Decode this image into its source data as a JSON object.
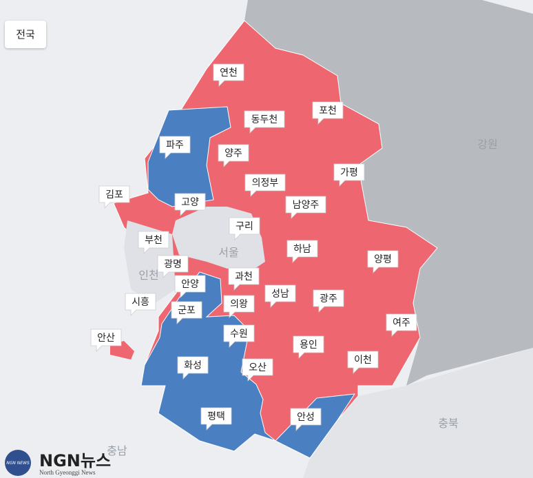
{
  "filter_button": "전국",
  "regions": [
    {
      "name": "연천",
      "color": "#ee6670"
    },
    {
      "name": "동두천",
      "color": "#ee6670"
    },
    {
      "name": "포천",
      "color": "#ee6670"
    },
    {
      "name": "파주",
      "color": "#4a7fc1"
    },
    {
      "name": "양주",
      "color": "#ee6670"
    },
    {
      "name": "가평",
      "color": "#ee6670"
    },
    {
      "name": "의정부",
      "color": "#ee6670"
    },
    {
      "name": "김포",
      "color": "#ee6670"
    },
    {
      "name": "고양",
      "color": "#ee6670"
    },
    {
      "name": "남양주",
      "color": "#ee6670"
    },
    {
      "name": "구리",
      "color": "#ee6670"
    },
    {
      "name": "부천",
      "color": "#ee6670"
    },
    {
      "name": "하남",
      "color": "#ee6670"
    },
    {
      "name": "양평",
      "color": "#ee6670"
    },
    {
      "name": "광명",
      "color": "#4a7fc1"
    },
    {
      "name": "안양",
      "color": "#4a7fc1"
    },
    {
      "name": "과천",
      "color": "#ee6670"
    },
    {
      "name": "성남",
      "color": "#ee6670"
    },
    {
      "name": "시흥",
      "color": "#4a7fc1"
    },
    {
      "name": "광주",
      "color": "#ee6670"
    },
    {
      "name": "의왕",
      "color": "#ee6670"
    },
    {
      "name": "군포",
      "color": "#4a7fc1"
    },
    {
      "name": "여주",
      "color": "#ee6670"
    },
    {
      "name": "수원",
      "color": "#4a7fc1"
    },
    {
      "name": "안산",
      "color": "#ee6670"
    },
    {
      "name": "용인",
      "color": "#ee6670"
    },
    {
      "name": "이천",
      "color": "#ee6670"
    },
    {
      "name": "화성",
      "color": "#4a7fc1"
    },
    {
      "name": "오산",
      "color": "#ee6670"
    },
    {
      "name": "평택",
      "color": "#4a7fc1"
    },
    {
      "name": "안성",
      "color": "#4a7fc1"
    }
  ],
  "background_labels": [
    "강원",
    "인천",
    "서울",
    "충북",
    "충남"
  ],
  "logo": {
    "mark": "NGN NEWS",
    "title": "NGN뉴스",
    "subtitle": "North Gyeonggi News"
  }
}
